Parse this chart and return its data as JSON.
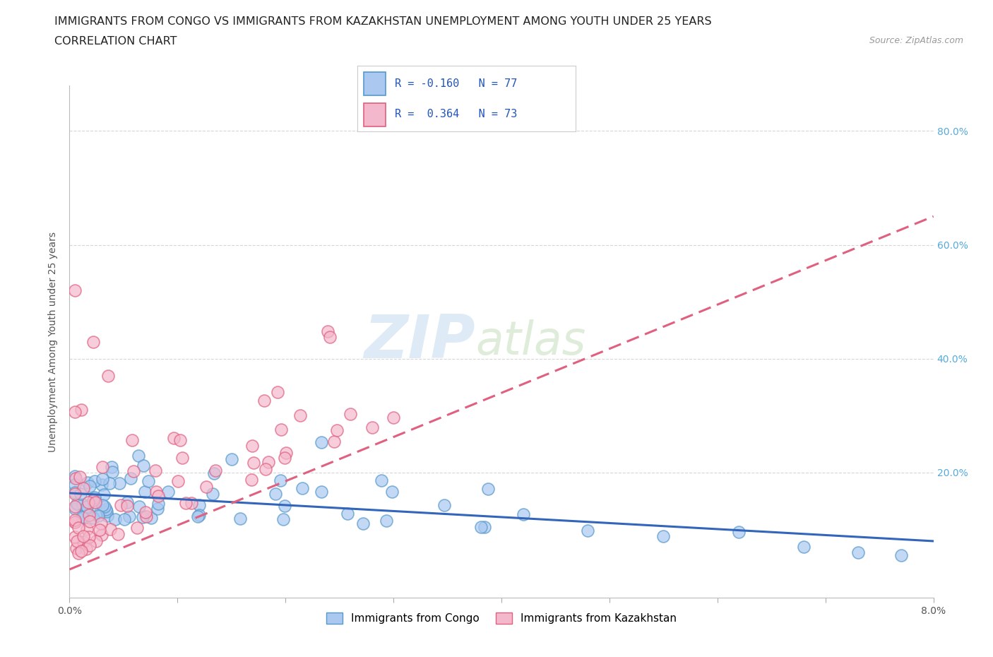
{
  "title_line1": "IMMIGRANTS FROM CONGO VS IMMIGRANTS FROM KAZAKHSTAN UNEMPLOYMENT AMONG YOUTH UNDER 25 YEARS",
  "title_line2": "CORRELATION CHART",
  "source_text": "Source: ZipAtlas.com",
  "ylabel": "Unemployment Among Youth under 25 years",
  "right_yticks": [
    "20.0%",
    "40.0%",
    "60.0%",
    "80.0%"
  ],
  "right_ytick_vals": [
    0.2,
    0.4,
    0.6,
    0.8
  ],
  "xlim": [
    0.0,
    0.08
  ],
  "ylim": [
    -0.02,
    0.88
  ],
  "congo_color": "#aac8f0",
  "congo_edge_color": "#5599cc",
  "kaz_color": "#f4b8cc",
  "kaz_edge_color": "#e06080",
  "trend_congo_color": "#3366bb",
  "trend_kaz_color": "#e06080",
  "legend_r_congo": "R = -0.160",
  "legend_n_congo": "N = 77",
  "legend_r_kaz": "R =  0.364",
  "legend_n_kaz": "N = 73",
  "watermark_zip": "ZIP",
  "watermark_atlas": "atlas",
  "grid_color": "#cccccc",
  "background_color": "#ffffff",
  "title_fontsize": 11.5,
  "axis_label_fontsize": 10,
  "tick_fontsize": 10,
  "watermark_fontsize": 62,
  "watermark_color_zip": "#c8dff0",
  "watermark_color_atlas": "#c8e0c0",
  "watermark_alpha": 0.6,
  "legend_text_color": "#2255bb",
  "legend_box_color": "#dddddd"
}
